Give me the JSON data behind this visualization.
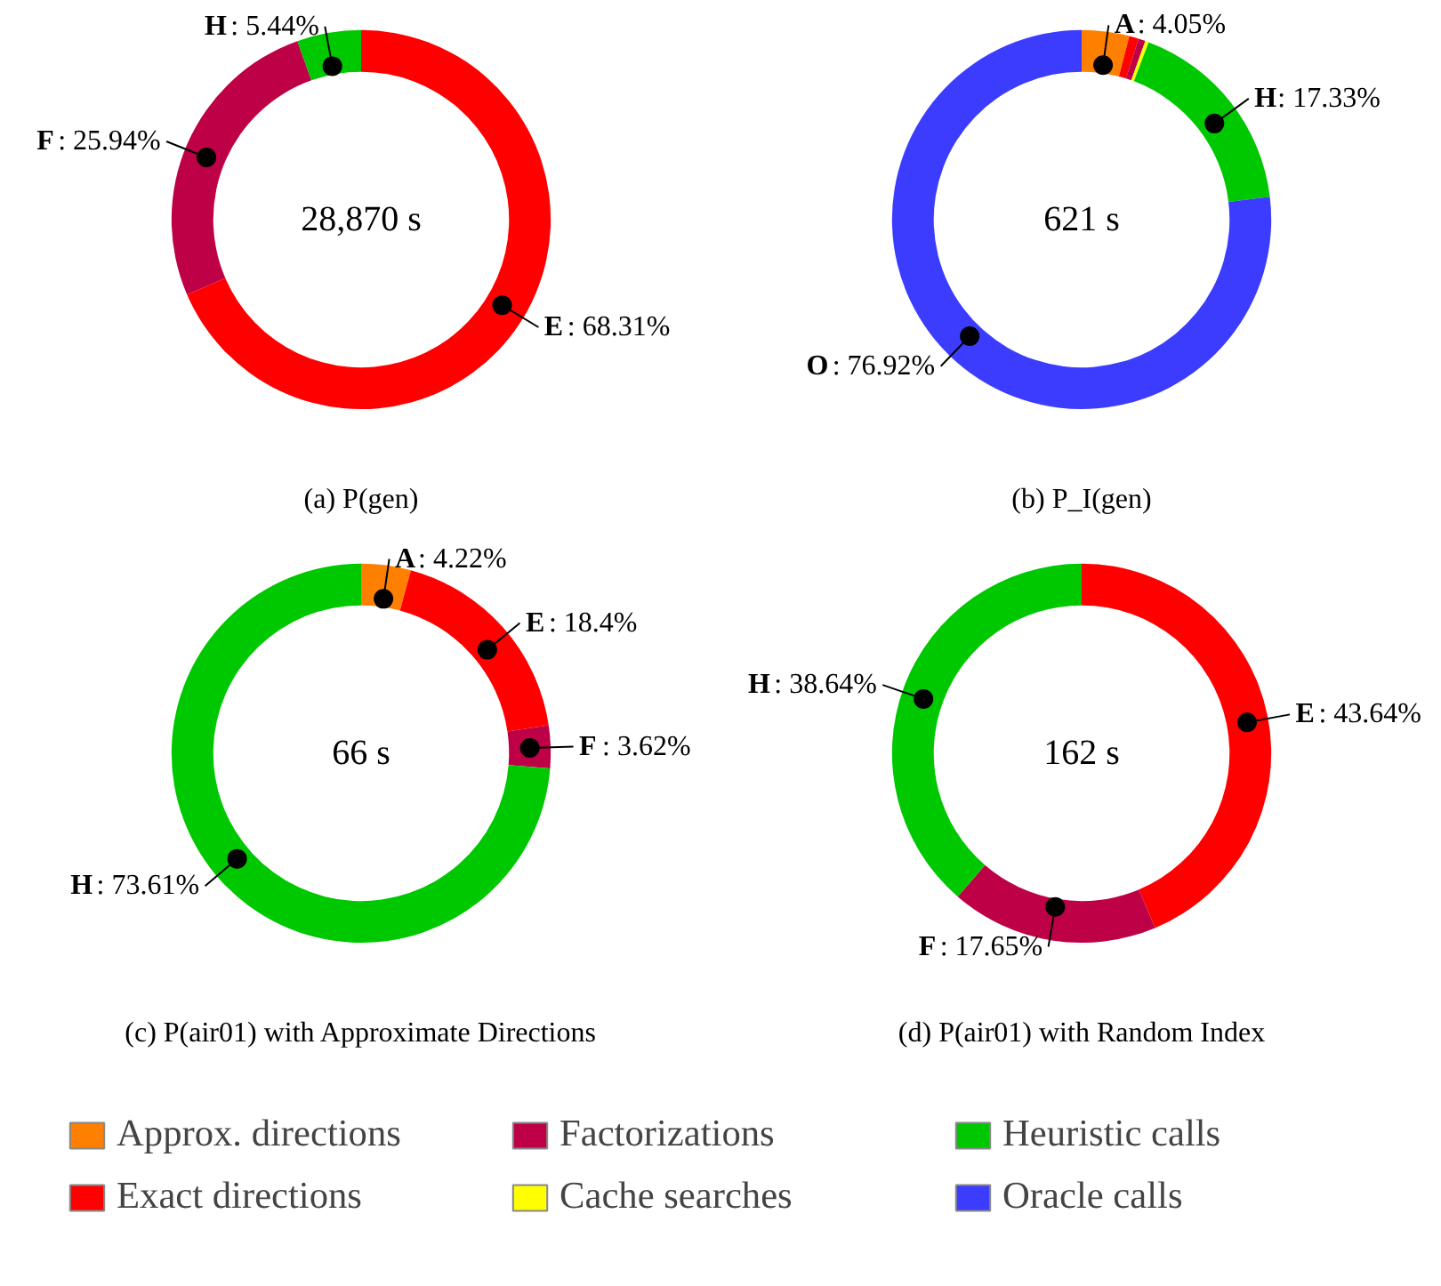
{
  "chart_data": [
    {
      "type": "donut",
      "title": "(a) P(gen)",
      "annotations": [
        "28,870 s"
      ],
      "categories": [
        "E",
        "F",
        "H"
      ],
      "values": [
        68.31,
        25.94,
        5.44
      ],
      "colors": [
        "#ff0000",
        "#be0046",
        "#00c800"
      ],
      "value_labels": [
        ": 68.31%",
        ": 25.94%",
        ": 5.44%"
      ]
    },
    {
      "type": "donut",
      "title": "(b) P_I(gen)",
      "annotations": [
        "621 s"
      ],
      "categories": [
        "A",
        null,
        null,
        null,
        "H",
        "O"
      ],
      "values": [
        4.05,
        0.8,
        0.6,
        0.3,
        17.33,
        76.92
      ],
      "colors": [
        "#ff8000",
        "#ff0000",
        "#be0046",
        "#ffff00",
        "#00c800",
        "#3c3cff"
      ],
      "value_labels": [
        ": 4.05%",
        null,
        null,
        null,
        ": 17.33%",
        ": 76.92%"
      ]
    },
    {
      "type": "donut",
      "title": "(c) P(air01) with Approximate Directions",
      "annotations": [
        "66 s"
      ],
      "categories": [
        "A",
        "E",
        "F",
        "H"
      ],
      "values": [
        4.22,
        18.4,
        3.62,
        73.61
      ],
      "colors": [
        "#ff8000",
        "#ff0000",
        "#be0046",
        "#00c800"
      ],
      "value_labels": [
        ": 4.22%",
        ": 18.4%",
        ": 3.62%",
        ": 73.61%"
      ]
    },
    {
      "type": "donut",
      "title": "(d) P(air01) with Random Index",
      "annotations": [
        "162 s"
      ],
      "categories": [
        "E",
        "F",
        "H"
      ],
      "values": [
        43.64,
        17.65,
        38.64
      ],
      "colors": [
        "#ff0000",
        "#be0046",
        "#00c800"
      ],
      "value_labels": [
        ": 43.64%",
        ": 17.65%",
        ": 38.64%"
      ]
    },
    {
      "type": "other",
      "categories": [
        "Approx. directions",
        "Factorizations",
        "Heuristic calls",
        "Exact directions",
        "Cache searches",
        "Oracle calls"
      ],
      "colors": [
        "#ff8000",
        "#be0046",
        "#00c800",
        "#ff0000",
        "#ffff00",
        "#3c3cff"
      ]
    }
  ]
}
